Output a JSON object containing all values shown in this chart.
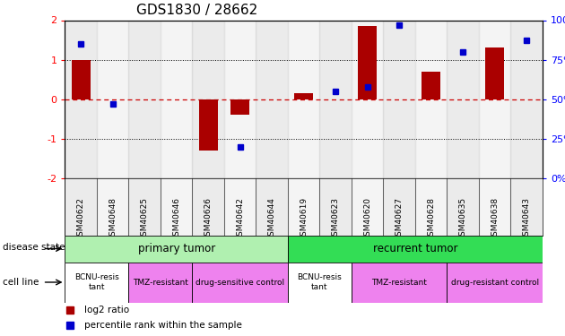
{
  "title": "GDS1830 / 28662",
  "samples": [
    "GSM40622",
    "GSM40648",
    "GSM40625",
    "GSM40646",
    "GSM40626",
    "GSM40642",
    "GSM40644",
    "GSM40619",
    "GSM40623",
    "GSM40620",
    "GSM40627",
    "GSM40628",
    "GSM40635",
    "GSM40638",
    "GSM40643"
  ],
  "log2_ratio": [
    1.0,
    0.0,
    0.0,
    0.0,
    -1.3,
    -0.4,
    0.0,
    0.15,
    0.0,
    1.85,
    0.0,
    0.7,
    0.0,
    1.3,
    0.0
  ],
  "percentile_raw": [
    85,
    47,
    null,
    null,
    null,
    20,
    null,
    null,
    55,
    58,
    97,
    null,
    80,
    null,
    87
  ],
  "disease_state_groups": [
    {
      "label": "primary tumor",
      "start": 0,
      "end": 7,
      "color": "#b0f0b0"
    },
    {
      "label": "recurrent tumor",
      "start": 7,
      "end": 15,
      "color": "#33dd55"
    }
  ],
  "cell_line_colors": [
    "#ffffff",
    "#ee82ee",
    "#ee82ee",
    "#ffffff",
    "#ee82ee",
    "#ee82ee"
  ],
  "cell_line_groups": [
    {
      "label": "BCNU-resis\ntant",
      "start": 0,
      "end": 2
    },
    {
      "label": "TMZ-resistant",
      "start": 2,
      "end": 4
    },
    {
      "label": "drug-sensitive control",
      "start": 4,
      "end": 7
    },
    {
      "label": "BCNU-resis\ntant",
      "start": 7,
      "end": 9
    },
    {
      "label": "TMZ-resistant",
      "start": 9,
      "end": 12
    },
    {
      "label": "drug-resistant control",
      "start": 12,
      "end": 15
    }
  ],
  "bar_color": "#aa0000",
  "dot_color": "#0000cc",
  "hline_color": "#cc0000",
  "dotline_color": "#000000",
  "bg_color_even": "#c8c8c8",
  "bg_color_odd": "#e0e0e0",
  "title_fontsize": 11
}
